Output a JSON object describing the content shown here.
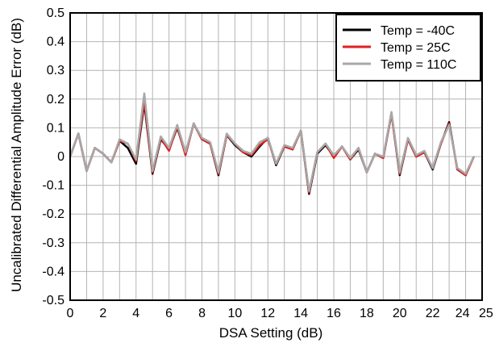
{
  "chart_data": {
    "type": "line",
    "title": "",
    "xlabel": "DSA Setting (dB)",
    "ylabel": "Uncalibrated Differential Amplitude Error (dB)",
    "xlim": [
      0,
      25
    ],
    "ylim": [
      -0.5,
      0.5
    ],
    "x_ticks": [
      0,
      2,
      4,
      6,
      8,
      10,
      12,
      14,
      16,
      18,
      20,
      22,
      24,
      25
    ],
    "x_tick_labels": [
      "0",
      "2",
      "4",
      "6",
      "8",
      "10",
      "12",
      "14",
      "16",
      "18",
      "20",
      "22",
      "24",
      "25"
    ],
    "y_ticks": [
      -0.5,
      -0.4,
      -0.3,
      -0.2,
      -0.1,
      0,
      0.1,
      0.2,
      0.3,
      0.4,
      0.5
    ],
    "y_tick_labels": [
      "-0.5",
      "-0.4",
      "-0.3",
      "-0.2",
      "-0.1",
      "0",
      "0.1",
      "0.2",
      "0.3",
      "0.4",
      "0.5"
    ],
    "grid": true,
    "legend_position": "top-right",
    "x": [
      0,
      0.5,
      1,
      1.5,
      2,
      2.5,
      3,
      3.5,
      4,
      4.5,
      5,
      5.5,
      6,
      6.5,
      7,
      7.5,
      8,
      8.5,
      9,
      9.5,
      10,
      10.5,
      11,
      11.5,
      12,
      12.5,
      13,
      13.5,
      14,
      14.5,
      15,
      15.5,
      16,
      16.5,
      17,
      17.5,
      18,
      18.5,
      19,
      19.5,
      20,
      20.5,
      21,
      21.5,
      22,
      22.5,
      23,
      23.5,
      24,
      24.5
    ],
    "series": [
      {
        "name": "Temp = -40C",
        "color": "#000000",
        "values": [
          0.0,
          0.08,
          -0.05,
          0.03,
          0.01,
          -0.02,
          0.055,
          0.03,
          -0.025,
          0.185,
          -0.06,
          0.06,
          0.025,
          0.1,
          0.01,
          0.115,
          0.06,
          0.045,
          -0.065,
          0.075,
          0.04,
          0.015,
          0.0,
          0.035,
          0.065,
          -0.03,
          0.035,
          0.025,
          0.09,
          -0.13,
          0.01,
          0.04,
          0.0,
          0.035,
          -0.01,
          0.025,
          -0.055,
          0.01,
          -0.005,
          0.15,
          -0.065,
          0.06,
          0.0,
          0.015,
          -0.045,
          0.045,
          0.12,
          -0.045,
          -0.065,
          0.0
        ]
      },
      {
        "name": "Temp = 25C",
        "color": "#e02020",
        "values": [
          0.0,
          0.08,
          -0.05,
          0.03,
          0.01,
          -0.02,
          0.055,
          0.045,
          -0.015,
          0.195,
          -0.055,
          0.065,
          0.02,
          0.105,
          0.005,
          0.115,
          0.06,
          0.045,
          -0.06,
          0.075,
          0.045,
          0.015,
          0.005,
          0.04,
          0.06,
          -0.025,
          0.035,
          0.025,
          0.09,
          -0.125,
          0.015,
          0.045,
          -0.005,
          0.035,
          -0.01,
          0.03,
          -0.055,
          0.01,
          -0.005,
          0.15,
          -0.06,
          0.06,
          0.0,
          0.015,
          -0.04,
          0.045,
          0.115,
          -0.045,
          -0.065,
          0.0
        ]
      },
      {
        "name": "Temp = 110C",
        "color": "#a8a8a8",
        "values": [
          0.0,
          0.08,
          -0.05,
          0.03,
          0.01,
          -0.02,
          0.06,
          0.045,
          -0.01,
          0.22,
          -0.05,
          0.07,
          0.03,
          0.11,
          0.015,
          0.115,
          0.065,
          0.05,
          -0.055,
          0.08,
          0.045,
          0.02,
          0.01,
          0.05,
          0.065,
          -0.025,
          0.04,
          0.03,
          0.09,
          -0.12,
          0.015,
          0.045,
          0.005,
          0.035,
          -0.005,
          0.03,
          -0.055,
          0.01,
          0.0,
          0.155,
          -0.055,
          0.065,
          0.005,
          0.02,
          -0.04,
          0.05,
          0.11,
          -0.04,
          -0.06,
          0.0
        ]
      }
    ]
  }
}
